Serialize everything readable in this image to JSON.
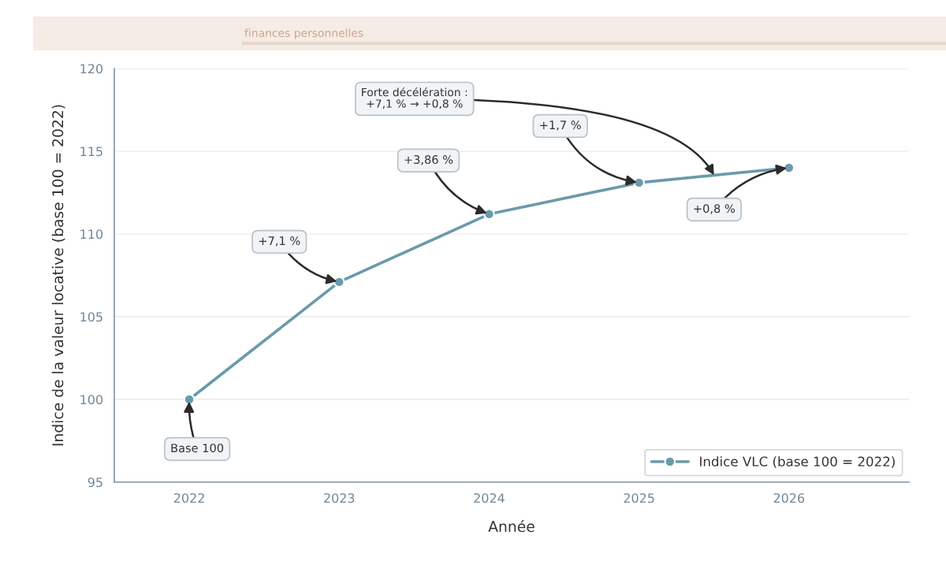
{
  "chart_data": {
    "type": "line",
    "subtitle": "finances personnelles",
    "xlabel": "Année",
    "ylabel": "Indice de la valeur locative (base 100 = 2022)",
    "x": [
      2022,
      2023,
      2024,
      2025,
      2026
    ],
    "series": [
      {
        "name": "Indice VLC (base 100 = 2022)",
        "color": "#6a9aab",
        "values": [
          100,
          107.1,
          111.2,
          113.1,
          114.0
        ]
      }
    ],
    "xlim": [
      2021.5,
      2026.8
    ],
    "xticks": [
      2022,
      2023,
      2024,
      2025,
      2026
    ],
    "ylim": [
      95,
      120
    ],
    "yticks": [
      95,
      100,
      105,
      110,
      115,
      120
    ],
    "grid": "y",
    "legend": "bottom right",
    "marker": "circle",
    "line_style": "solid",
    "annotations": [
      {
        "text": "Base 100",
        "x": 2022,
        "y": 100
      },
      {
        "text": "+7,1 %",
        "x": 2023,
        "y": 107.1
      },
      {
        "text": "+3,86 %",
        "x": 2024,
        "y": 111.2
      },
      {
        "text": "+1,7 %",
        "x": 2025,
        "y": 113.1
      },
      {
        "text": "+0,8 %",
        "x": 2026,
        "y": 114.0
      },
      {
        "text": "Forte décélération :\n+7,1 % → +0,8 %",
        "x": 2025.5,
        "y": 113.55
      }
    ]
  }
}
